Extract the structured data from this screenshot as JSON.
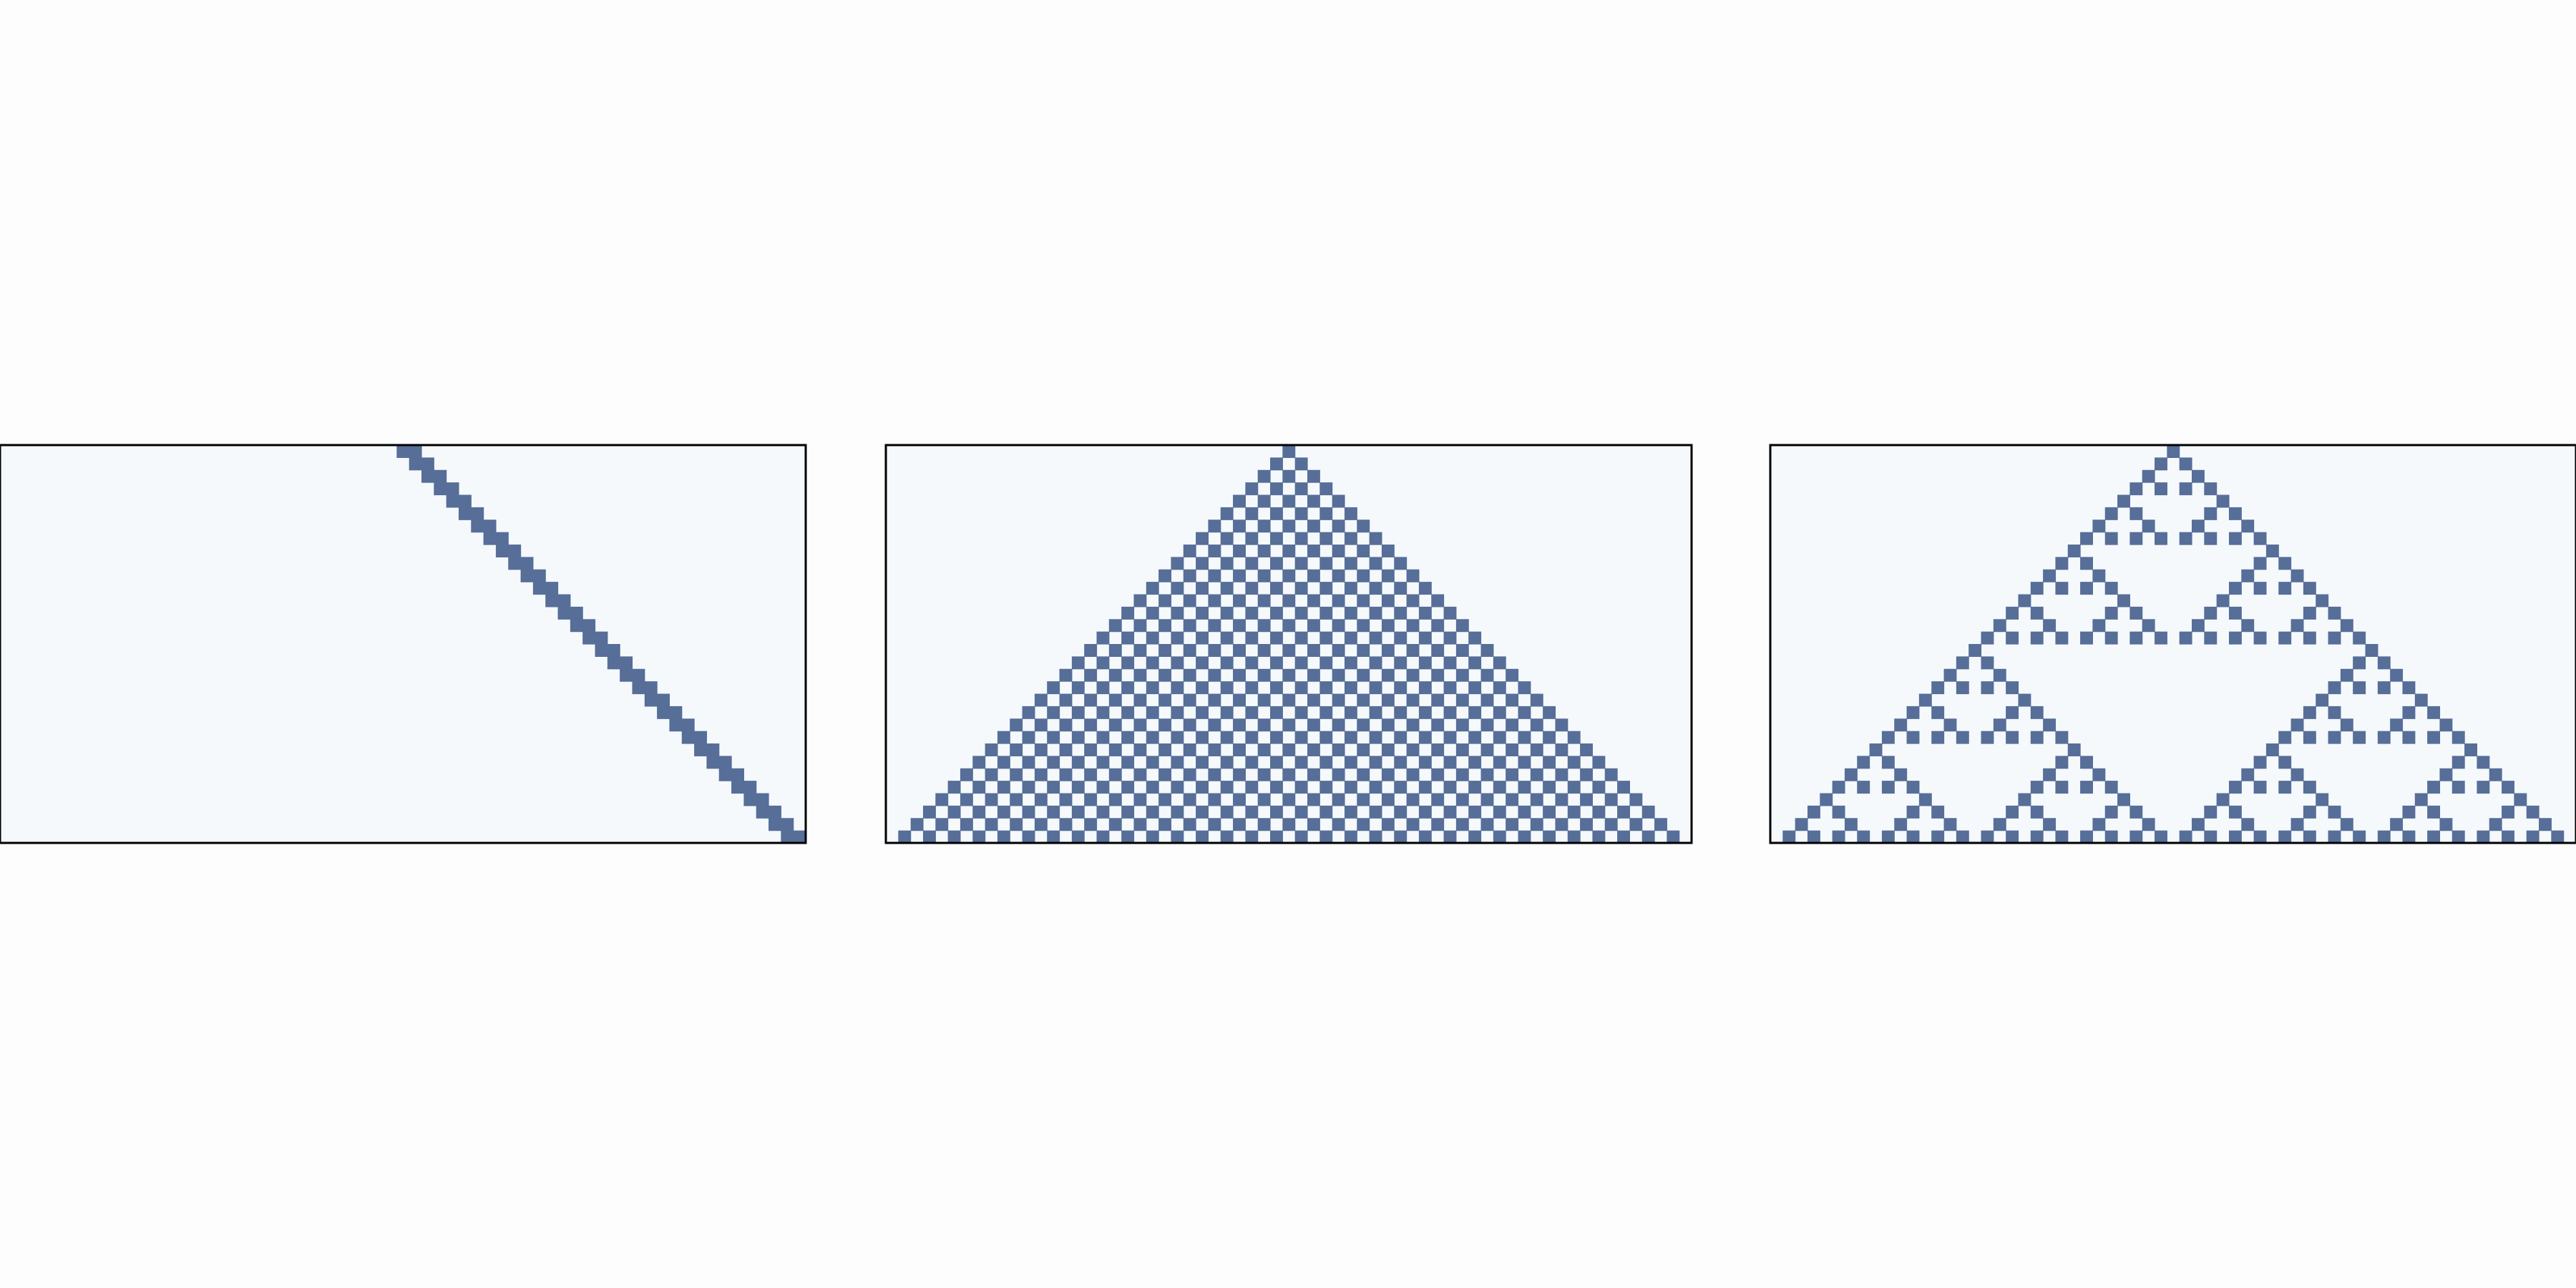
{
  "figure": {
    "background_color": "#fdfdfd",
    "panel_fill_color": "#f5f9fc",
    "cell_color": "#566e98",
    "frame_color": "#000000"
  },
  "panels": [
    {
      "id": "panel-1",
      "pattern": "diagonal",
      "generations": 32,
      "cells_per_row": 65
    },
    {
      "id": "panel-2",
      "pattern": "checkerboard-triangle",
      "generations": 32,
      "cells_per_row": 65
    },
    {
      "id": "panel-3",
      "pattern": "sierpinski-triangle",
      "generations": 32,
      "cells_per_row": 65
    }
  ]
}
